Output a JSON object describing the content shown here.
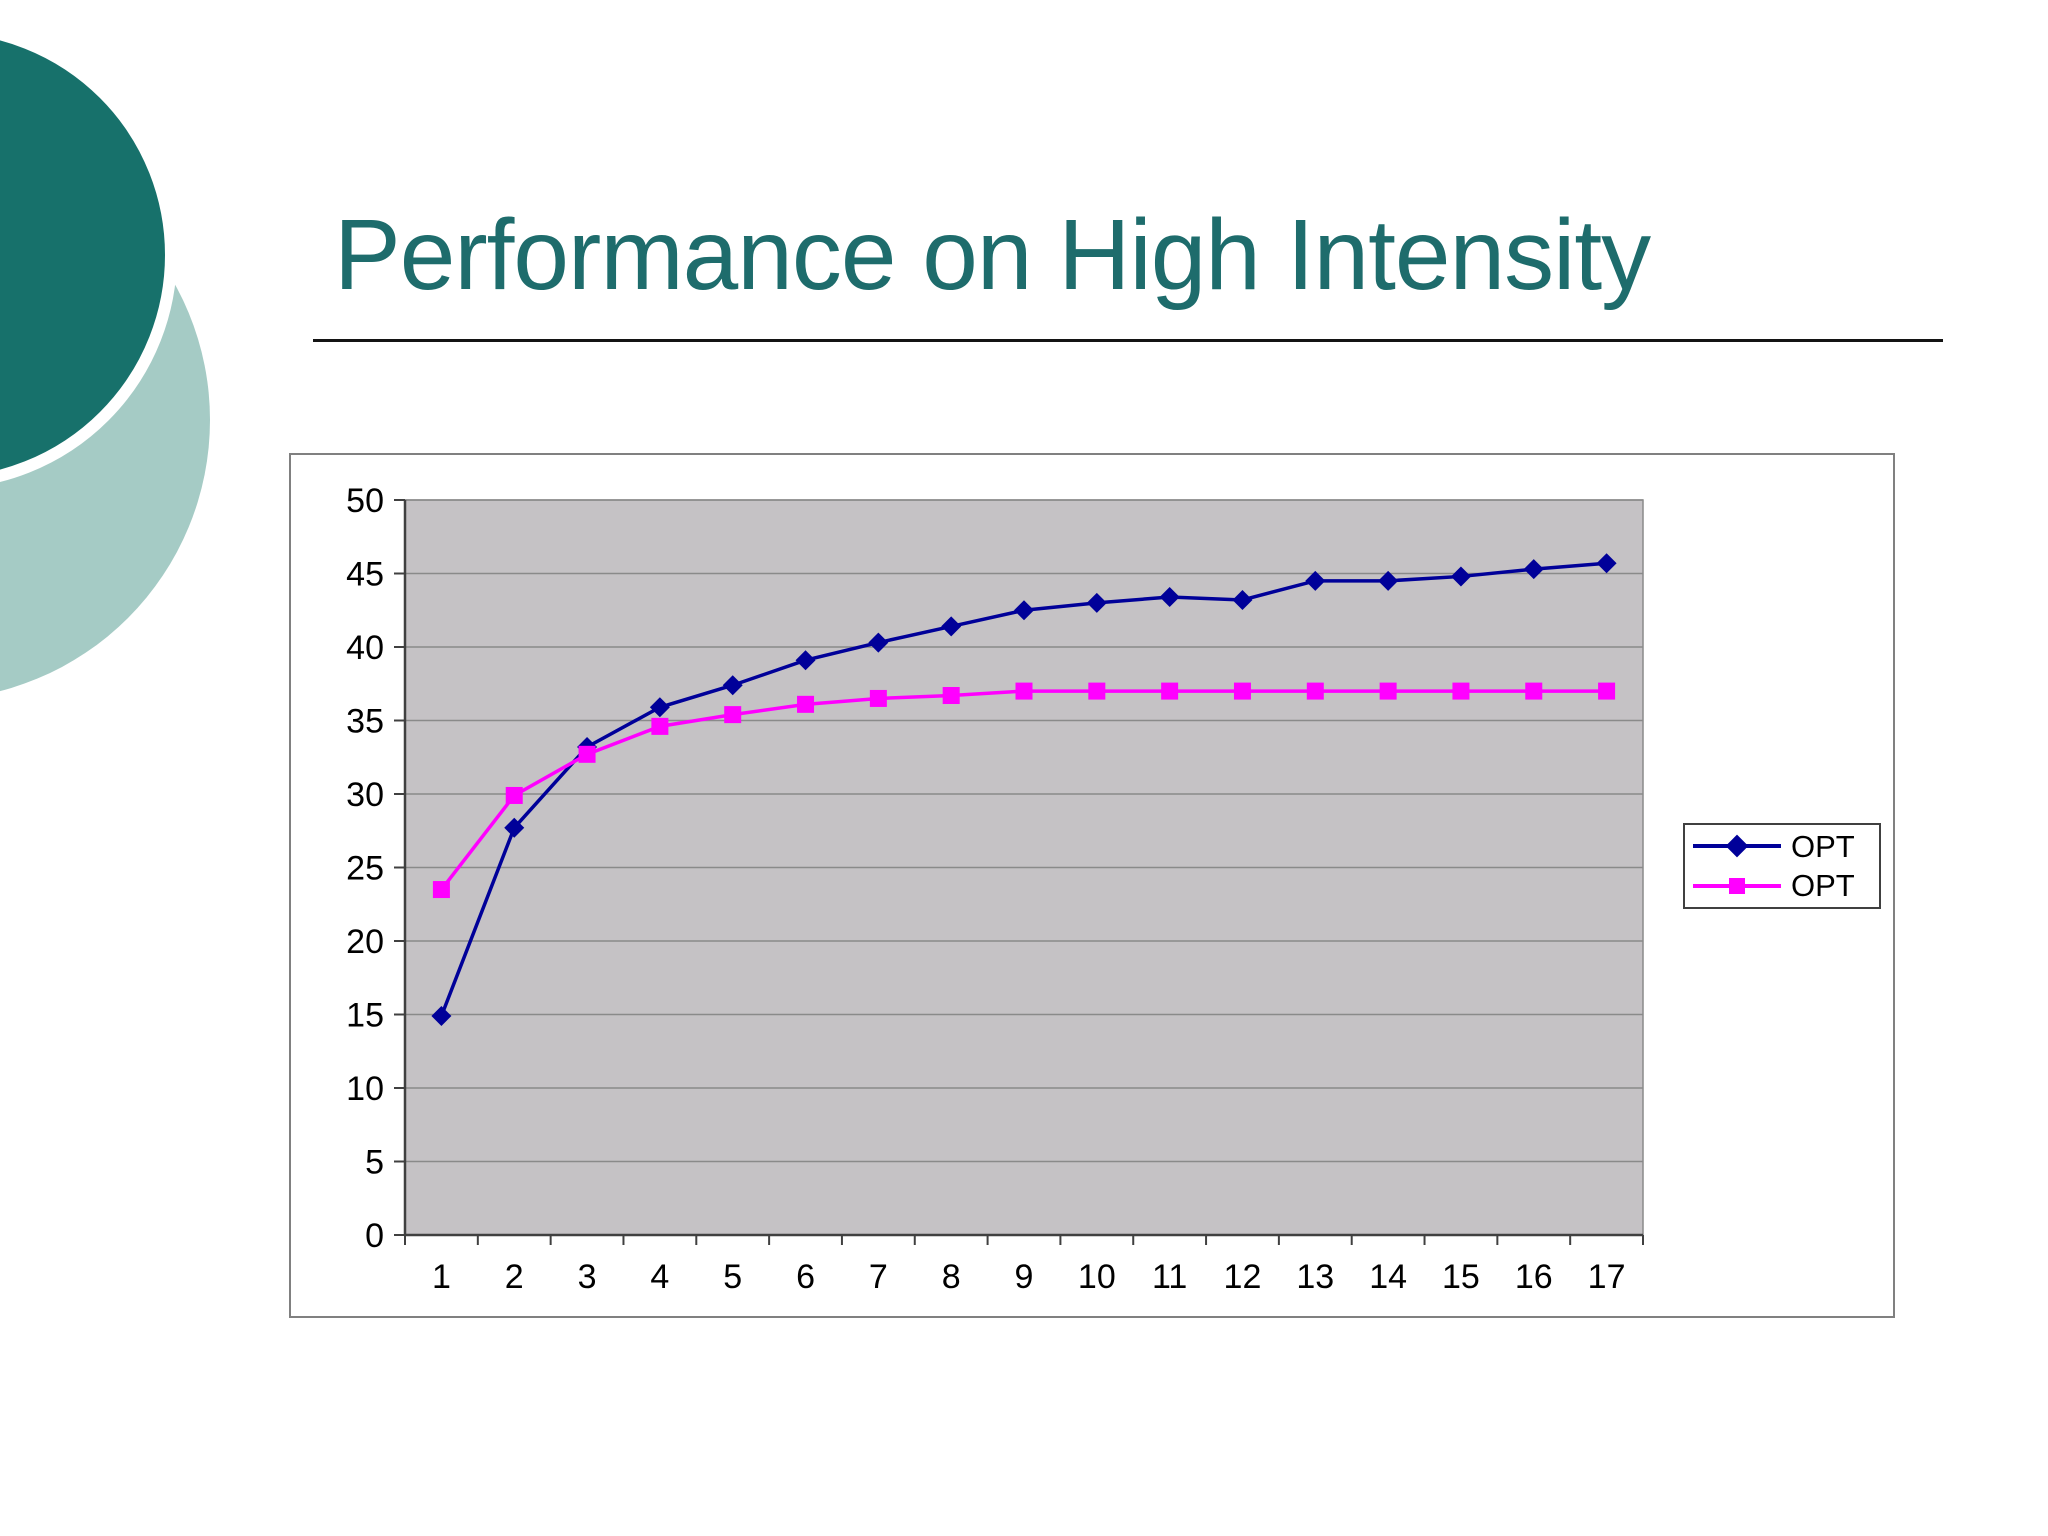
{
  "slide": {
    "title": "Performance on High Intensity",
    "title_color": "#1e6c6c",
    "rule_color": "#141414",
    "background_color": "#ffffff",
    "decor": {
      "dark_circle_color": "#17716b",
      "light_circle_color": "#a5cbc5"
    }
  },
  "chart_data": {
    "type": "line",
    "title": "",
    "xlabel": "",
    "ylabel": "",
    "x": [
      1,
      2,
      3,
      4,
      5,
      6,
      7,
      8,
      9,
      10,
      11,
      12,
      13,
      14,
      15,
      16,
      17
    ],
    "x_labels": [
      "1",
      "2",
      "3",
      "4",
      "5",
      "6",
      "7",
      "8",
      "9",
      "10",
      "11",
      "12",
      "13",
      "14",
      "15",
      "16",
      "17"
    ],
    "y_labels": [
      "0",
      "5",
      "10",
      "15",
      "20",
      "25",
      "30",
      "35",
      "40",
      "45",
      "50"
    ],
    "ylim": [
      0,
      50
    ],
    "ytick_step": 5,
    "grid": true,
    "legend_position": "right",
    "plot_bg_color": "#c5c2c5",
    "gridline_color": "#8a8a8a",
    "axis_color": "#404040",
    "tick_label_color": "#000000",
    "series": [
      {
        "name": "OPT",
        "color": "#000099",
        "marker": "diamond",
        "values": [
          14.9,
          27.7,
          33.2,
          35.9,
          37.4,
          39.1,
          40.3,
          41.4,
          42.5,
          43.0,
          43.4,
          43.2,
          44.5,
          44.5,
          44.8,
          45.3,
          45.7
        ]
      },
      {
        "name": "OPT",
        "color": "#ff00ff",
        "marker": "square",
        "values": [
          23.5,
          29.9,
          32.7,
          34.6,
          35.4,
          36.1,
          36.5,
          36.7,
          37.0,
          37.0,
          37.0,
          37.0,
          37.0,
          37.0,
          37.0,
          37.0,
          37.0
        ]
      }
    ],
    "legend": {
      "items": [
        {
          "label": "OPT"
        },
        {
          "label": "OPT"
        }
      ]
    }
  }
}
